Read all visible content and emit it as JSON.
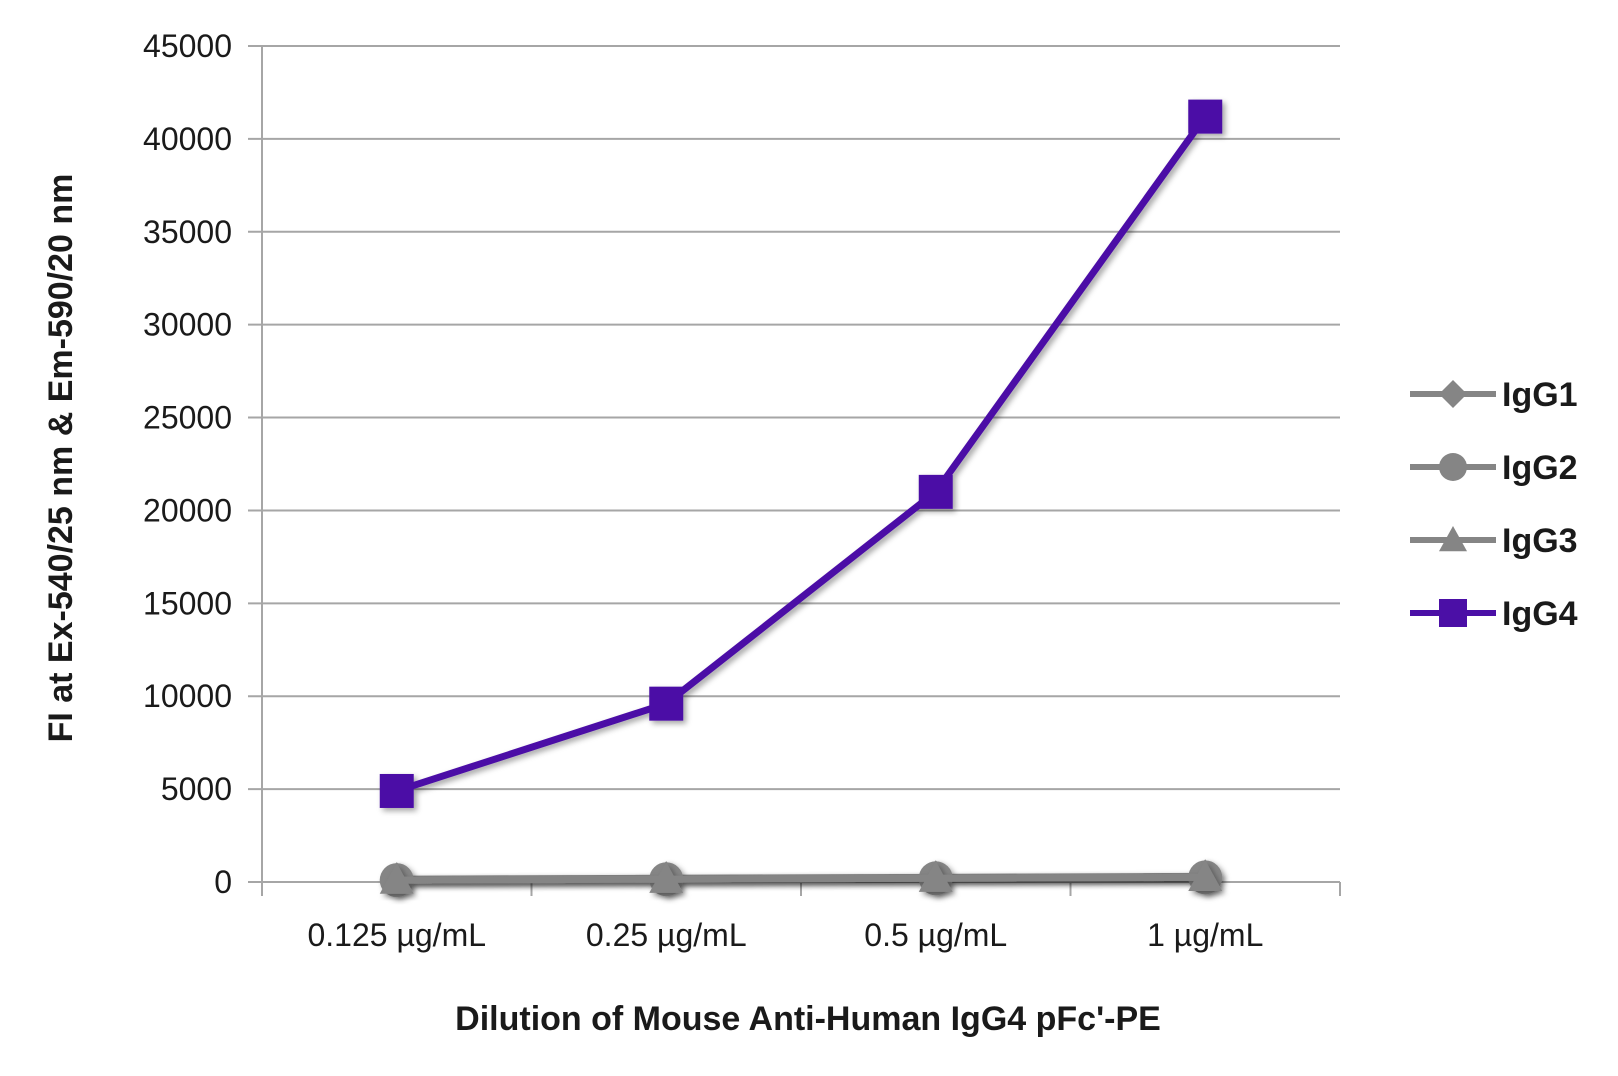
{
  "chart_data": {
    "type": "line",
    "title": "",
    "xlabel": "Dilution of Mouse Anti-Human IgG4 pFc'-PE",
    "ylabel": "FI at Ex-540/25 nm & Em-590/20 nm",
    "categories": [
      "0.125 µg/mL",
      "0.25 µg/mL",
      "0.5 µg/mL",
      "1 µg/mL"
    ],
    "ylim": [
      0,
      45000
    ],
    "yticks": [
      0,
      5000,
      10000,
      15000,
      20000,
      25000,
      30000,
      35000,
      40000,
      45000
    ],
    "grid": true,
    "legend_position": "right",
    "series": [
      {
        "name": "IgG1",
        "marker": "diamond",
        "color": "#858585",
        "values": [
          150,
          200,
          250,
          300
        ]
      },
      {
        "name": "IgG2",
        "marker": "circle",
        "color": "#858585",
        "values": [
          100,
          150,
          200,
          250
        ]
      },
      {
        "name": "IgG3",
        "marker": "triangle",
        "color": "#858585",
        "values": [
          100,
          150,
          200,
          250
        ]
      },
      {
        "name": "IgG4",
        "marker": "square",
        "color": "#4b0fa6",
        "values": [
          4900,
          9600,
          21000,
          41200
        ]
      }
    ]
  }
}
